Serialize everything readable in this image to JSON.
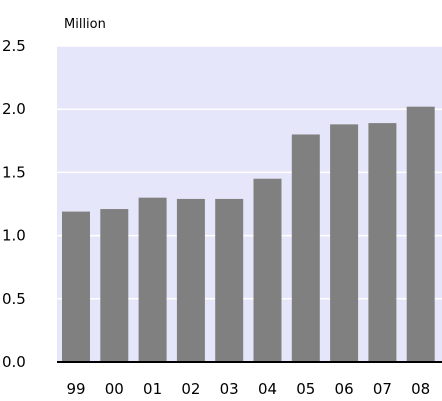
{
  "chart_data": {
    "type": "bar",
    "title": "",
    "unit_label": "Million",
    "xlabel": "",
    "ylabel": "",
    "categories": [
      "99",
      "00",
      "01",
      "02",
      "03",
      "04",
      "05",
      "06",
      "07",
      "08"
    ],
    "values": [
      1.19,
      1.21,
      1.3,
      1.29,
      1.29,
      1.45,
      1.8,
      1.88,
      1.89,
      2.02
    ],
    "ylim": [
      0,
      2.5
    ],
    "yticks": [
      "0.0",
      "0.5",
      "1.0",
      "1.5",
      "2.0",
      "2.5"
    ],
    "grid": true,
    "legend": "none"
  },
  "colors": {
    "plot_background": "#e6e6fa",
    "bar": "#808080",
    "gridline": "#ffffff",
    "axis": "#000000"
  }
}
